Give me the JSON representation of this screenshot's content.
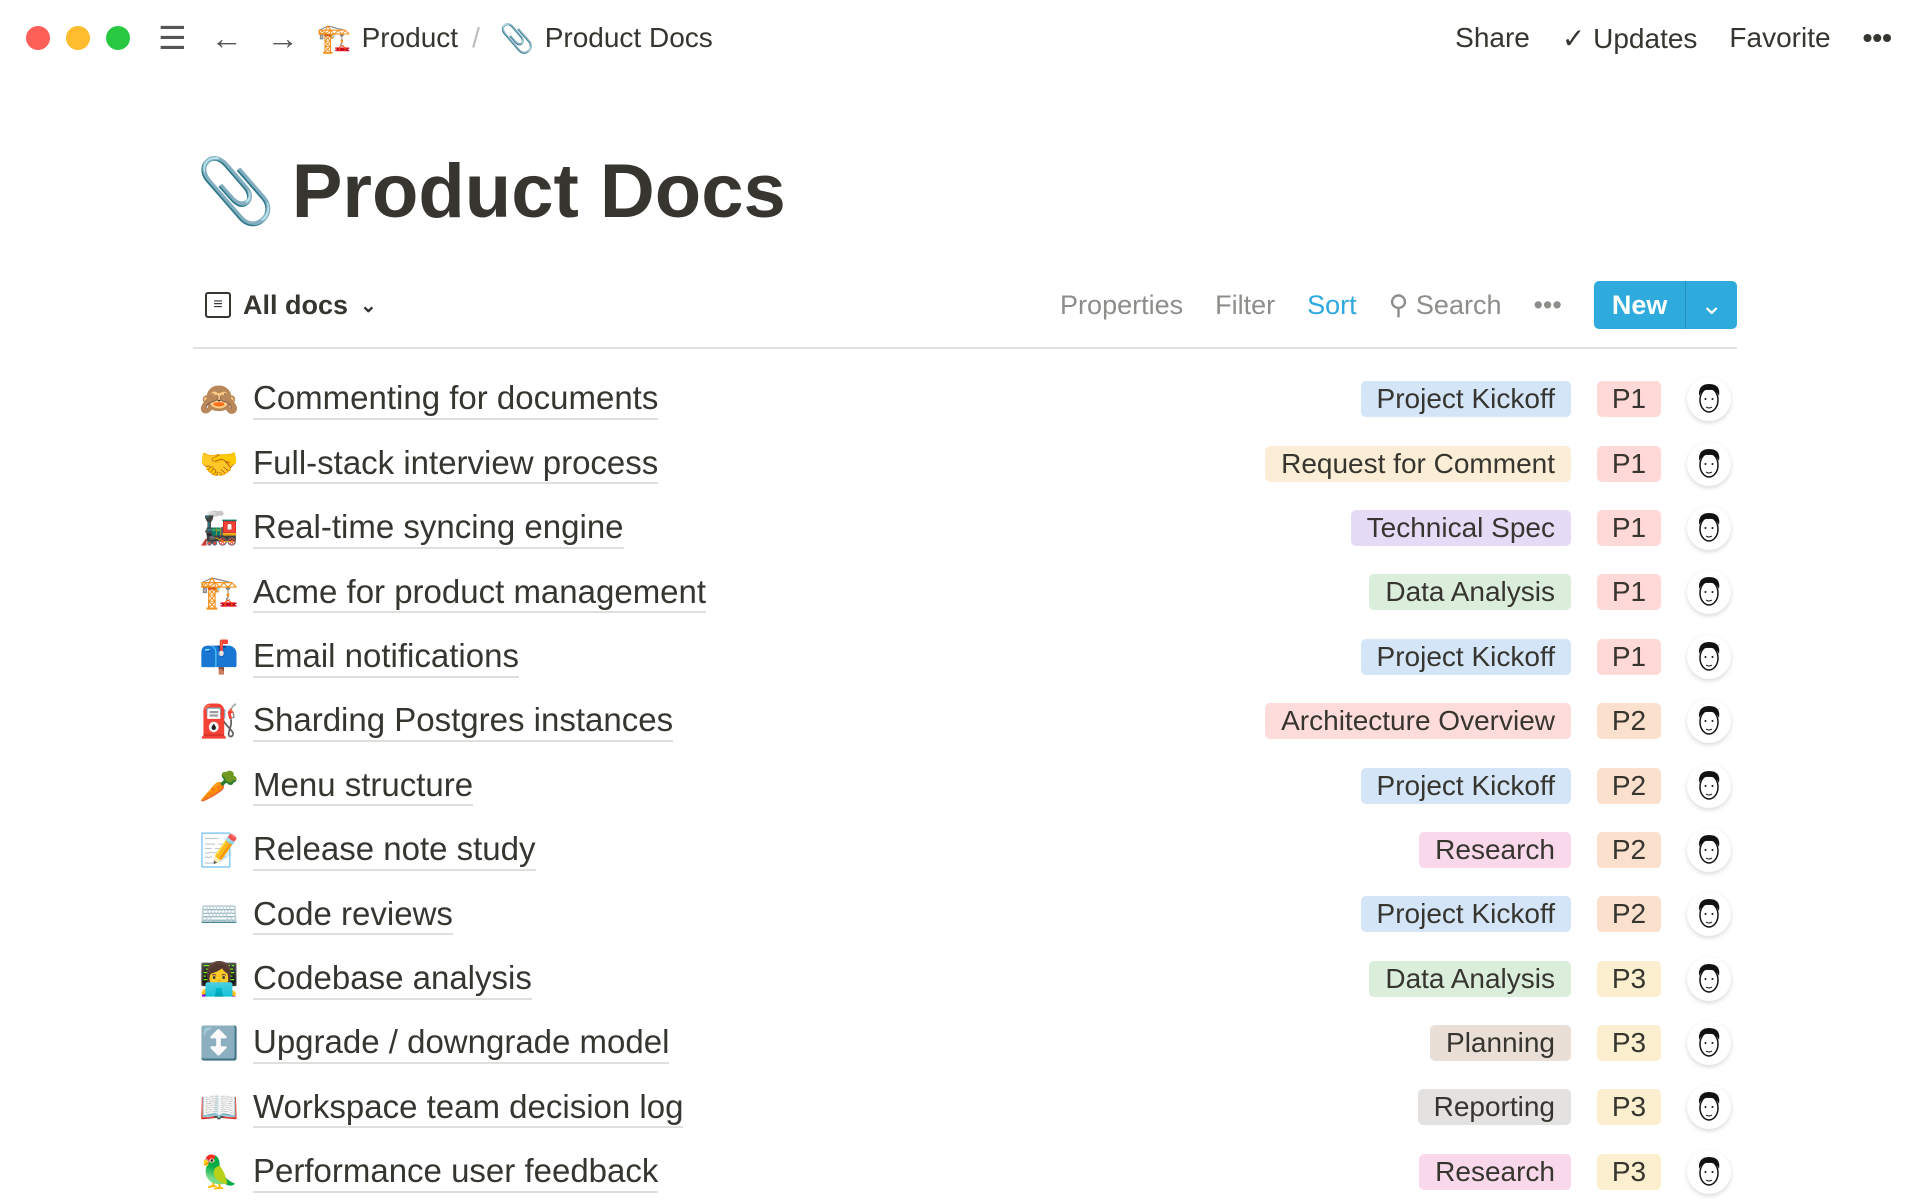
{
  "topbar": {
    "breadcrumb": [
      {
        "icon": "🏗️",
        "label": "Product"
      },
      {
        "icon": "📎",
        "label": "Product Docs"
      }
    ],
    "separator": "/",
    "share": "Share",
    "updates": "Updates",
    "favorite": "Favorite",
    "more": "•••"
  },
  "page": {
    "icon": "📎",
    "title": "Product Docs"
  },
  "toolbar": {
    "view_label": "All docs",
    "properties": "Properties",
    "filter": "Filter",
    "sort": "Sort",
    "search": "Search",
    "more": "•••",
    "new": "New"
  },
  "colors": {
    "accent": "#2eaadc",
    "Project Kickoff": "#d3e5f7",
    "Request for Comment": "#fbedd6",
    "Technical Spec": "#e5dbf7",
    "Data Analysis": "#dbeddb",
    "Architecture Overview": "#ffdcdc",
    "Research": "#f8d8ea",
    "Planning": "#eadfd7",
    "Reporting": "#e3e2e0",
    "P1": "#ffd8d8",
    "P2": "#fbe1cd",
    "P3": "#fbefcf"
  },
  "rows": [
    {
      "icon": "🙈",
      "name": "Commenting for documents",
      "tag": "Project Kickoff",
      "priority": "P1"
    },
    {
      "icon": "🤝",
      "name": "Full-stack interview process",
      "tag": "Request for Comment",
      "priority": "P1"
    },
    {
      "icon": "🚂",
      "name": "Real-time syncing engine",
      "tag": "Technical Spec",
      "priority": "P1"
    },
    {
      "icon": "🏗️",
      "name": "Acme for product management",
      "tag": "Data Analysis",
      "priority": "P1"
    },
    {
      "icon": "📫",
      "name": "Email notifications",
      "tag": "Project Kickoff",
      "priority": "P1"
    },
    {
      "icon": "⛽",
      "name": "Sharding Postgres instances",
      "tag": "Architecture Overview",
      "priority": "P2"
    },
    {
      "icon": "🥕",
      "name": "Menu structure",
      "tag": "Project Kickoff",
      "priority": "P2"
    },
    {
      "icon": "📝",
      "name": "Release note study",
      "tag": "Research",
      "priority": "P2"
    },
    {
      "icon": "⌨️",
      "name": "Code reviews",
      "tag": "Project Kickoff",
      "priority": "P2"
    },
    {
      "icon": "👩‍💻",
      "name": "Codebase analysis",
      "tag": "Data Analysis",
      "priority": "P3"
    },
    {
      "icon": "↕️",
      "name": "Upgrade / downgrade model",
      "tag": "Planning",
      "priority": "P3"
    },
    {
      "icon": "📖",
      "name": "Workspace team decision log",
      "tag": "Reporting",
      "priority": "P3"
    },
    {
      "icon": "🦜",
      "name": "Performance user feedback",
      "tag": "Research",
      "priority": "P3"
    }
  ]
}
